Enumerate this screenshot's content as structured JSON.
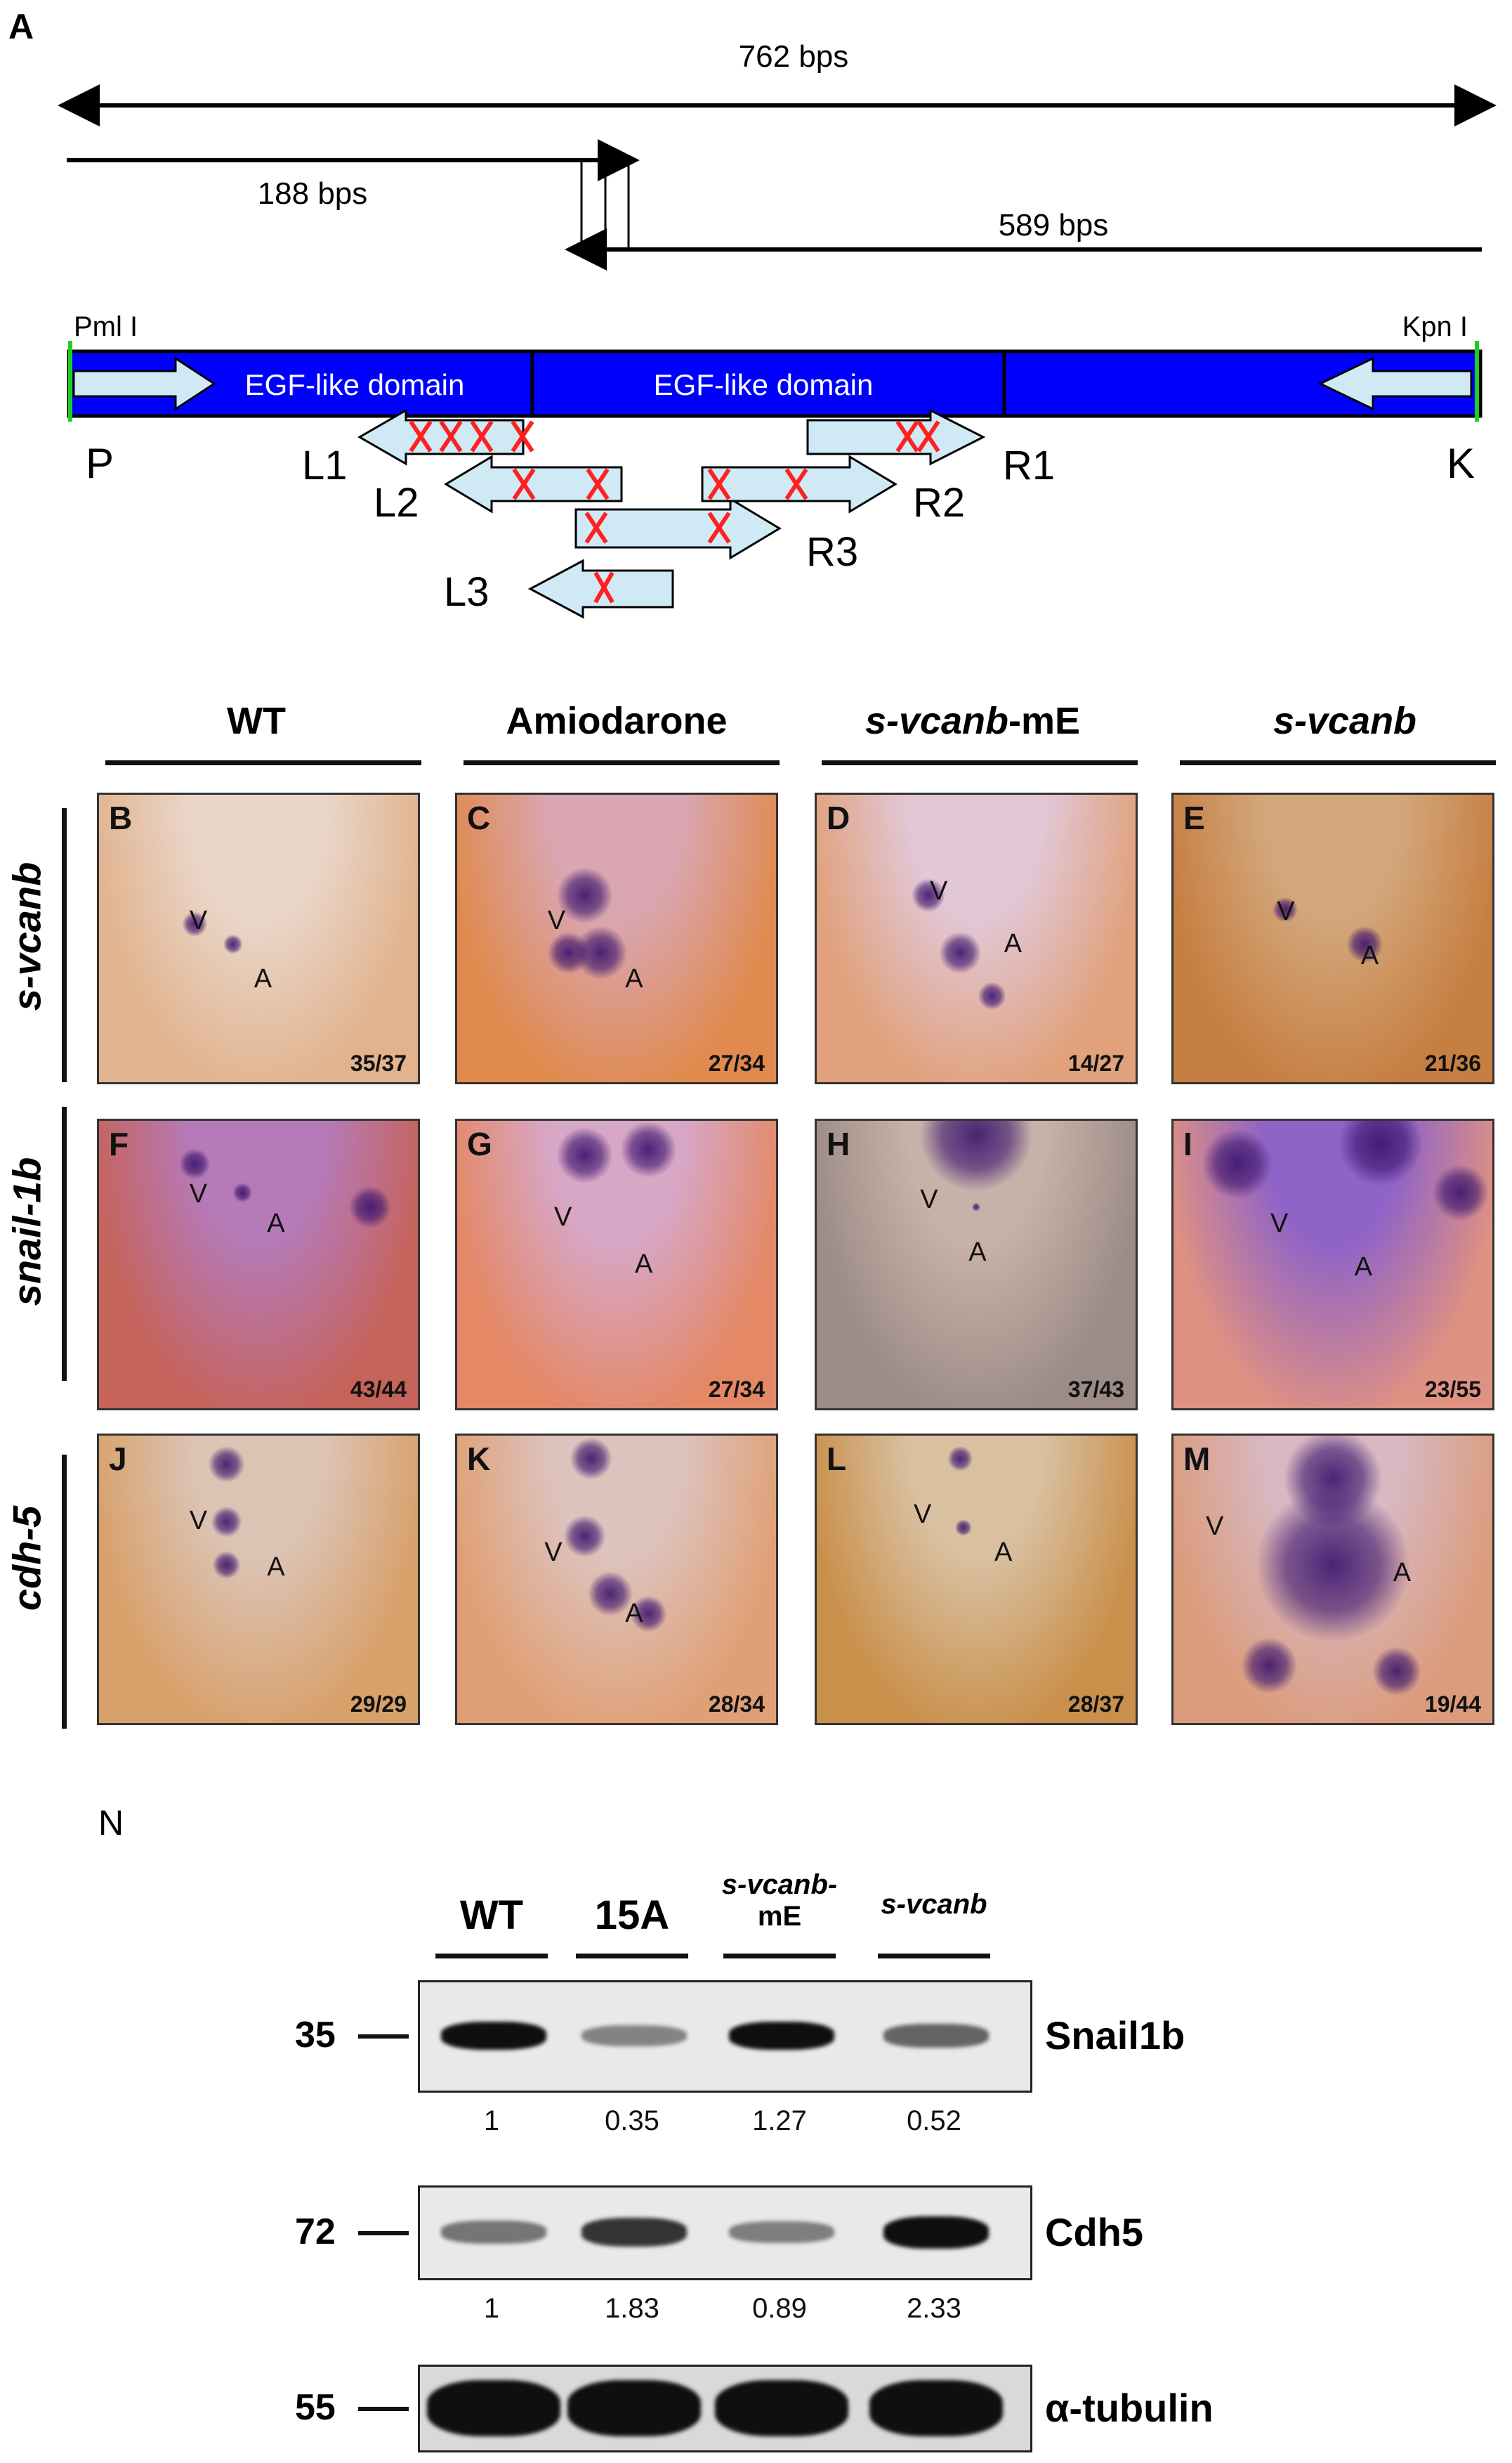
{
  "panel_a": {
    "letter": "A",
    "total_label": "762 bps",
    "left_label": "188 bps",
    "right_label": "589 bps",
    "site_left": "Pml I",
    "site_right": "Kpn I",
    "domain1": "EGF-like domain",
    "domain2": "EGF-like domain",
    "end_left": "P",
    "end_right": "K",
    "primers": [
      "L1",
      "L2",
      "L3",
      "R1",
      "R2",
      "R3"
    ]
  },
  "columns": [
    {
      "text": "WT",
      "italic": false
    },
    {
      "text": "Amiodarone",
      "italic": false
    },
    {
      "text": "s-vcanb",
      "suffix": "-mE",
      "italic": true
    },
    {
      "text": "s-vcanb",
      "italic": true
    }
  ],
  "rows": [
    "s-vcanb",
    "snail-1b",
    "cdh-5"
  ],
  "panels": [
    {
      "letter": "B",
      "count": "35/37"
    },
    {
      "letter": "C",
      "count": "27/34"
    },
    {
      "letter": "D",
      "count": "14/27"
    },
    {
      "letter": "E",
      "count": "21/36"
    },
    {
      "letter": "F",
      "count": "43/44"
    },
    {
      "letter": "G",
      "count": "27/34"
    },
    {
      "letter": "H",
      "count": "37/43"
    },
    {
      "letter": "I",
      "count": "23/55"
    },
    {
      "letter": "J",
      "count": "29/29"
    },
    {
      "letter": "K",
      "count": "28/34"
    },
    {
      "letter": "L",
      "count": "28/37"
    },
    {
      "letter": "M",
      "count": "19/44"
    }
  ],
  "chamber_labels": {
    "ventricle": "V",
    "atrium": "A"
  },
  "panel_n": {
    "letter": "N",
    "lanes": [
      "WT",
      "15A",
      "s-vcanb-\nmE",
      "s-vcanb"
    ],
    "lane_line1": [
      "WT",
      "15A",
      "s-vcanb-",
      "s-vcanb"
    ],
    "lane_line2": [
      "",
      "",
      "mE",
      ""
    ],
    "blots": [
      {
        "protein": "Snail1b",
        "mw": "35",
        "quant": [
          "1",
          "0.35",
          "1.27",
          "0.52"
        ],
        "intensity": [
          1.0,
          0.35,
          1.0,
          0.52
        ]
      },
      {
        "protein": "Cdh5",
        "mw": "72",
        "quant": [
          "1",
          "1.83",
          "0.89",
          "2.33"
        ],
        "intensity": [
          0.43,
          0.79,
          0.38,
          1.0
        ]
      },
      {
        "protein": "α-tubulin",
        "mw": "55",
        "quant": [],
        "intensity": [
          1.0,
          1.0,
          1.0,
          1.0
        ]
      }
    ]
  }
}
